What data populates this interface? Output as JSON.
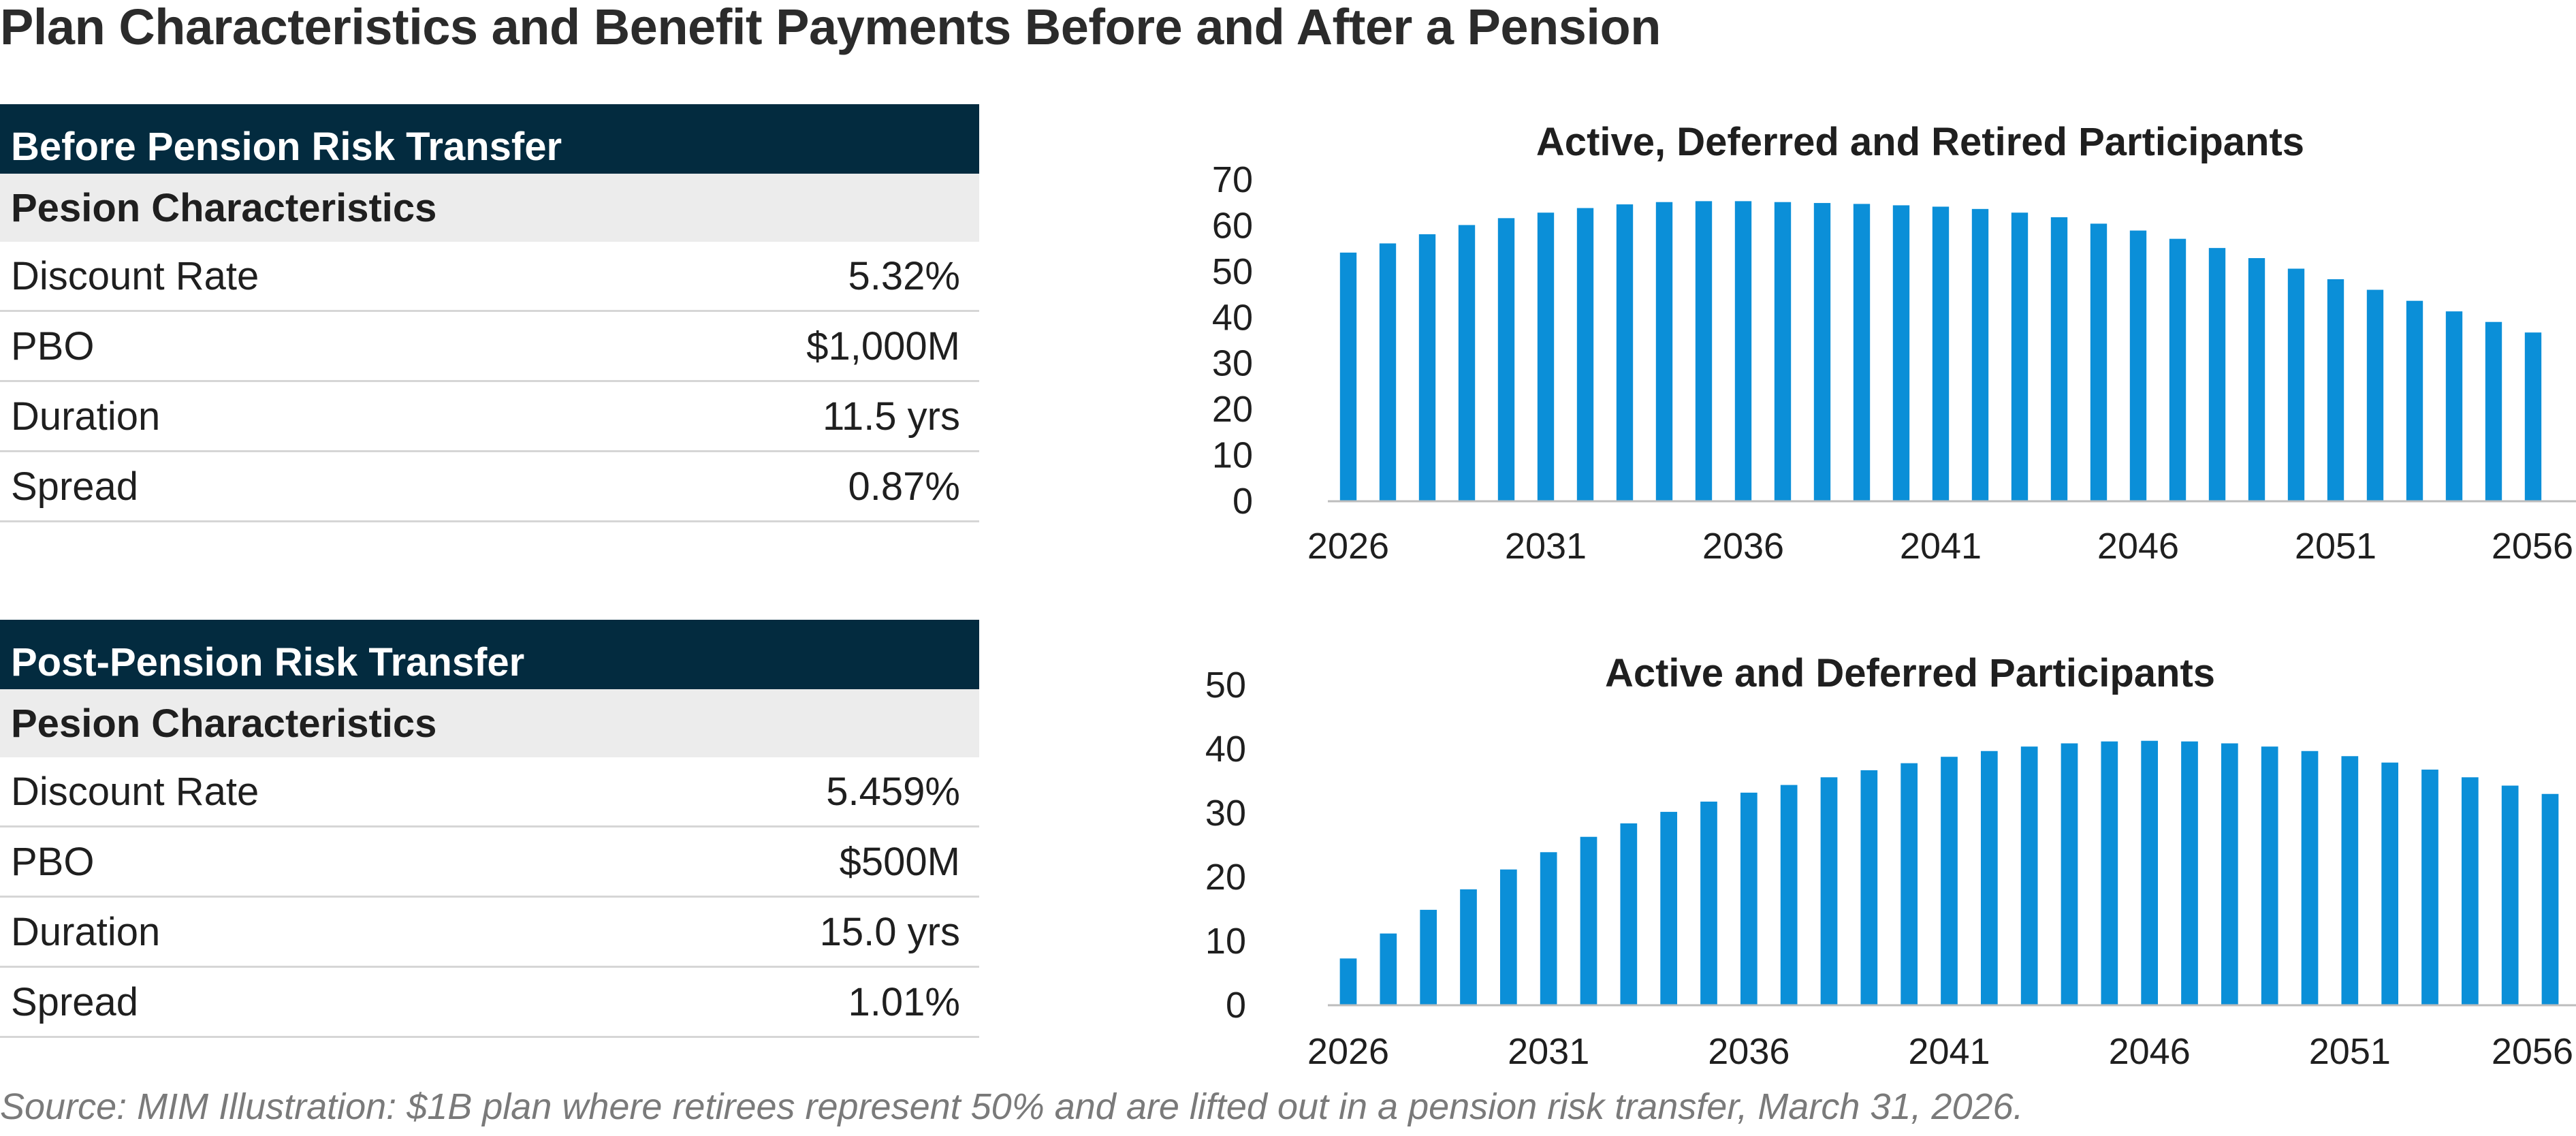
{
  "title": "Plan Characteristics and Benefit Payments Before and After a Pension",
  "tables": [
    {
      "header": "Before Pension Risk Transfer",
      "subheader": "Pesion Characteristics",
      "rows": [
        {
          "label": "Discount Rate",
          "value": "5.32%"
        },
        {
          "label": "PBO",
          "value": "$1,000M"
        },
        {
          "label": "Duration",
          "value": "11.5 yrs"
        },
        {
          "label": "Spread",
          "value": "0.87%"
        }
      ]
    },
    {
      "header": "Post-Pension Risk Transfer",
      "subheader": "Pesion Characteristics",
      "rows": [
        {
          "label": "Discount Rate",
          "value": "5.459%"
        },
        {
          "label": "PBO",
          "value": "$500M"
        },
        {
          "label": "Duration",
          "value": "15.0 yrs"
        },
        {
          "label": "Spread",
          "value": "1.01%"
        }
      ]
    }
  ],
  "source": "Source: MIM Illustration: $1B plan where retirees represent 50% and are lifted out in a pension risk transfer, March 31, 2026.",
  "chart_data": [
    {
      "type": "bar",
      "title": "Active, Deferred and Retired  Participants",
      "xlabel": "",
      "ylabel": "",
      "x_start": 2026,
      "x_end": 2056,
      "x_ticks": [
        "2026",
        "2031",
        "2036",
        "2041",
        "2046",
        "2051",
        "2056"
      ],
      "y_ticks": [
        "0",
        "10",
        "20",
        "30",
        "40",
        "50",
        "60",
        "70"
      ],
      "ylim": [
        0,
        70
      ],
      "grid": false,
      "bar_color": "#0b8fd8",
      "values": [
        54.0,
        56.0,
        58.0,
        60.0,
        61.5,
        62.7,
        63.7,
        64.5,
        65.0,
        65.2,
        65.2,
        65.0,
        64.8,
        64.6,
        64.3,
        64.0,
        63.5,
        62.7,
        61.7,
        60.3,
        58.8,
        57.0,
        55.0,
        52.8,
        50.5,
        48.2,
        45.9,
        43.5,
        41.2,
        38.9,
        36.6
      ]
    },
    {
      "type": "bar",
      "title": "Active and Deferred Participants",
      "xlabel": "",
      "ylabel": "",
      "x_start": 2026,
      "x_end": 2056,
      "x_ticks": [
        "2026",
        "2031",
        "2036",
        "2041",
        "2046",
        "2051",
        "2056"
      ],
      "y_ticks": [
        "0",
        "10",
        "20",
        "30",
        "40",
        "50"
      ],
      "ylim": [
        0,
        50
      ],
      "grid": false,
      "bar_color": "#0b8fd8",
      "values": [
        7.2,
        11.1,
        14.8,
        18.0,
        21.1,
        23.8,
        26.2,
        28.3,
        30.1,
        31.7,
        33.1,
        34.3,
        35.5,
        36.6,
        37.7,
        38.7,
        39.6,
        40.3,
        40.8,
        41.1,
        41.2,
        41.1,
        40.8,
        40.3,
        39.6,
        38.8,
        37.8,
        36.7,
        35.5,
        34.2,
        32.9
      ]
    }
  ]
}
